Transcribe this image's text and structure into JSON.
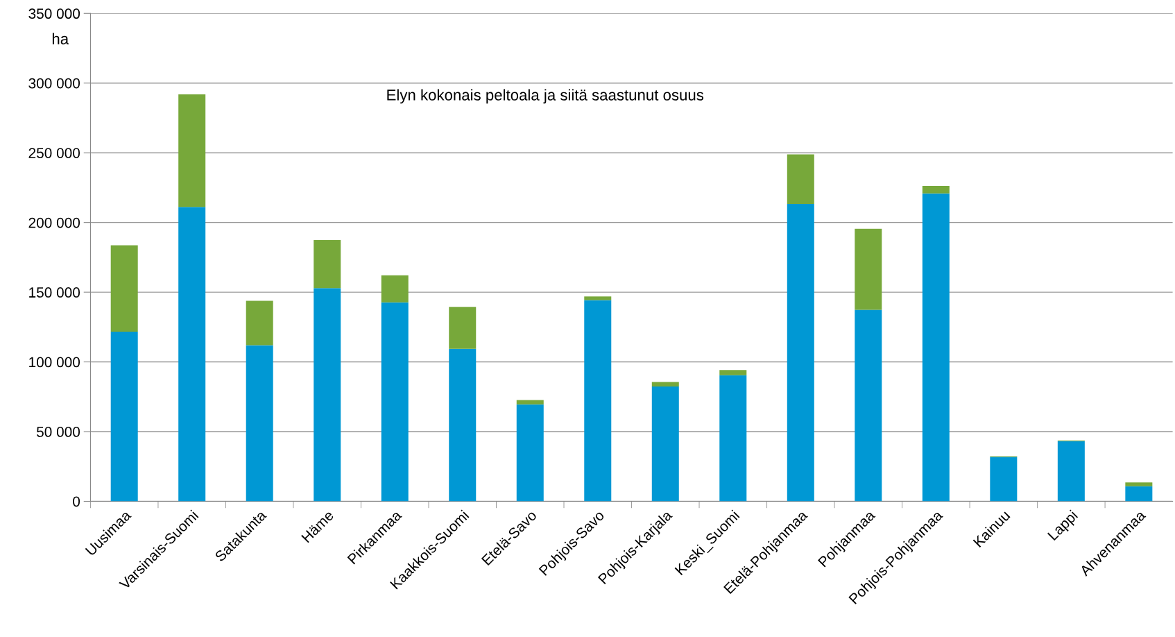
{
  "chart_data": {
    "type": "bar",
    "stacked": true,
    "title": "Elyn kokonais peltoala ja siitä saastunut osuus",
    "ylabel": "ha",
    "categories": [
      "Uusimaa",
      "Varsinais-Suomi",
      "Satakunta",
      "Häme",
      "Pirkanmaa",
      "Kaakkois-Suomi",
      "Etelä-Savo",
      "Pohjois-Savo",
      "Pohjois-Karjala",
      "Keski_Suomi",
      "Etelä-Pohjanmaa",
      "Pohjanmaa",
      "Pohjois-Pohjanmaa",
      "Kainuu",
      "Lappi",
      "Ahvenanmaa"
    ],
    "series": [
      {
        "color": "#0098d4",
        "values": [
          121700,
          211100,
          112000,
          152900,
          142700,
          109300,
          69500,
          144300,
          82400,
          90500,
          213200,
          137300,
          220800,
          31800,
          43100,
          10800
        ]
      },
      {
        "color": "#77a83a",
        "values": [
          62000,
          80800,
          31800,
          34500,
          19400,
          30200,
          3200,
          2700,
          3200,
          3700,
          35600,
          58200,
          5400,
          500,
          500,
          2700
        ]
      }
    ],
    "ylim": [
      0,
      350000
    ],
    "yticks": [
      {
        "value": 0,
        "label": "0"
      },
      {
        "value": 50000,
        "label": "50 000"
      },
      {
        "value": 100000,
        "label": "100 000"
      },
      {
        "value": 150000,
        "label": "150 000"
      },
      {
        "value": 200000,
        "label": "200 000"
      },
      {
        "value": 250000,
        "label": "250 000"
      },
      {
        "value": 300000,
        "label": "300 000"
      },
      {
        "value": 350000,
        "label": "350 000"
      }
    ],
    "grid": "y",
    "legend": false
  }
}
